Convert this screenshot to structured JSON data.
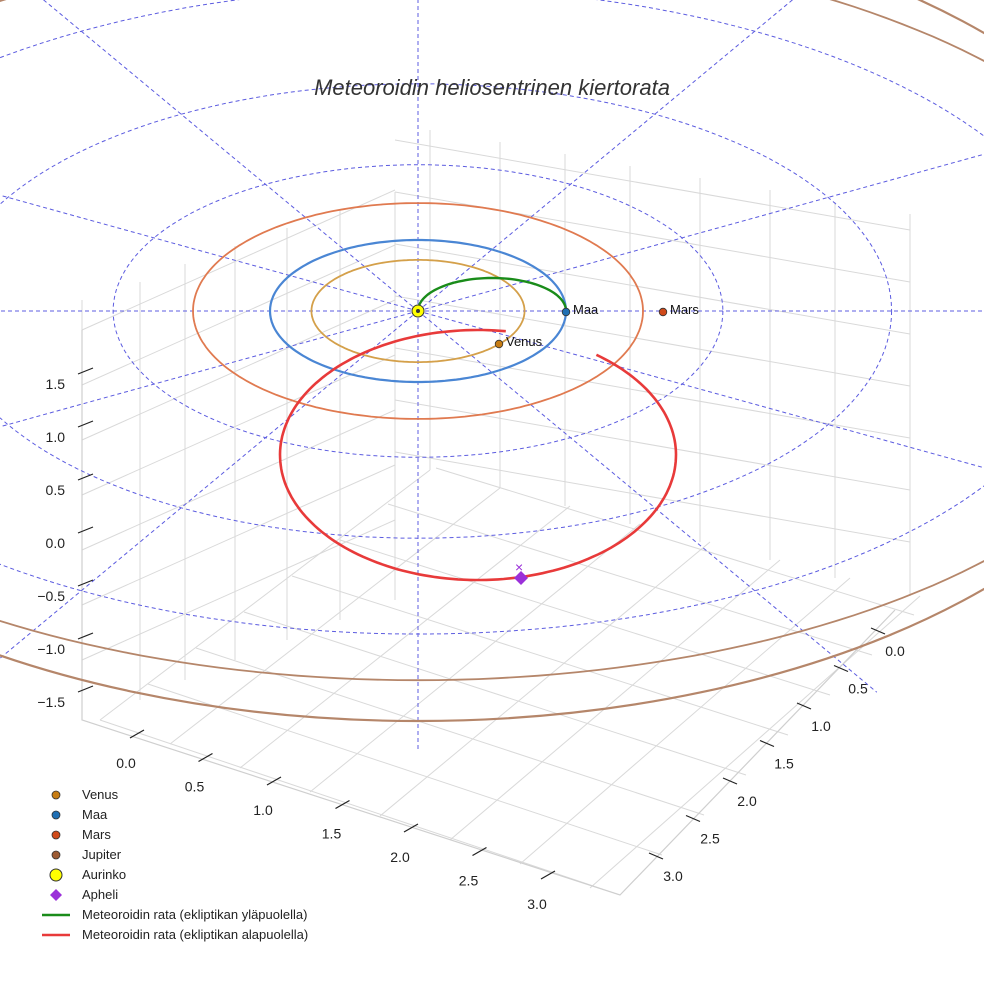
{
  "chart_data": {
    "type": "3d-orbit",
    "title": "Meteoroidin heliosentrinen kiertorata",
    "axes": {
      "z_ticks": [
        "1.5",
        "1.0",
        "0.5",
        "0.0",
        "−0.5",
        "−1.0",
        "−1.5"
      ],
      "x_ticks": [
        "0.0",
        "0.5",
        "1.0",
        "1.5",
        "2.0",
        "2.5",
        "3.0"
      ],
      "y_ticks": [
        "0.0",
        "0.5",
        "1.0",
        "1.5",
        "2.0",
        "2.5",
        "3.0"
      ]
    },
    "planets": [
      {
        "name": "Venus",
        "label": "Venus",
        "orbit_radius_au": 0.72,
        "color": "#d4a04a",
        "marker_color": "#c77c12"
      },
      {
        "name": "Maa",
        "label": "Maa",
        "orbit_radius_au": 1.0,
        "color": "#4a86d4",
        "marker_color": "#1f6fb4"
      },
      {
        "name": "Mars",
        "label": "Mars",
        "orbit_radius_au": 1.52,
        "color": "#e07a50",
        "marker_color": "#d04a1a"
      },
      {
        "name": "Jupiter",
        "label": "",
        "orbit_radius_au": 5.2,
        "color": "#b5866a",
        "marker_color": "#9c5a32"
      }
    ],
    "sun": {
      "name": "Aurinko",
      "color": "#ffff00"
    },
    "aphelion": {
      "name": "Apheli",
      "color": "#9b30d9"
    },
    "meteoroid_orbit": {
      "above": {
        "name": "Meteoroidin rata (ekliptikan yläpuolella)",
        "color": "#1a8c1a"
      },
      "below": {
        "name": "Meteoroidin rata (ekliptikan alapuolella)",
        "color": "#e83a3a"
      }
    },
    "ecliptic_grid_color": "#5c5ce0",
    "legend": [
      {
        "label": "Venus",
        "kind": "dot",
        "color": "#c77c12"
      },
      {
        "label": "Maa",
        "kind": "dot",
        "color": "#1f6fb4"
      },
      {
        "label": "Mars",
        "kind": "dot",
        "color": "#d04a1a"
      },
      {
        "label": "Jupiter",
        "kind": "dot",
        "color": "#9c5a32"
      },
      {
        "label": "Aurinko",
        "kind": "sun",
        "color": "#ffff00"
      },
      {
        "label": "Apheli",
        "kind": "diamond",
        "color": "#9b30d9"
      },
      {
        "label": "Meteoroidin rata (ekliptikan yläpuolella)",
        "kind": "line",
        "color": "#1a8c1a"
      },
      {
        "label": "Meteoroidin rata (ekliptikan alapuolella)",
        "kind": "line",
        "color": "#e83a3a"
      }
    ]
  }
}
